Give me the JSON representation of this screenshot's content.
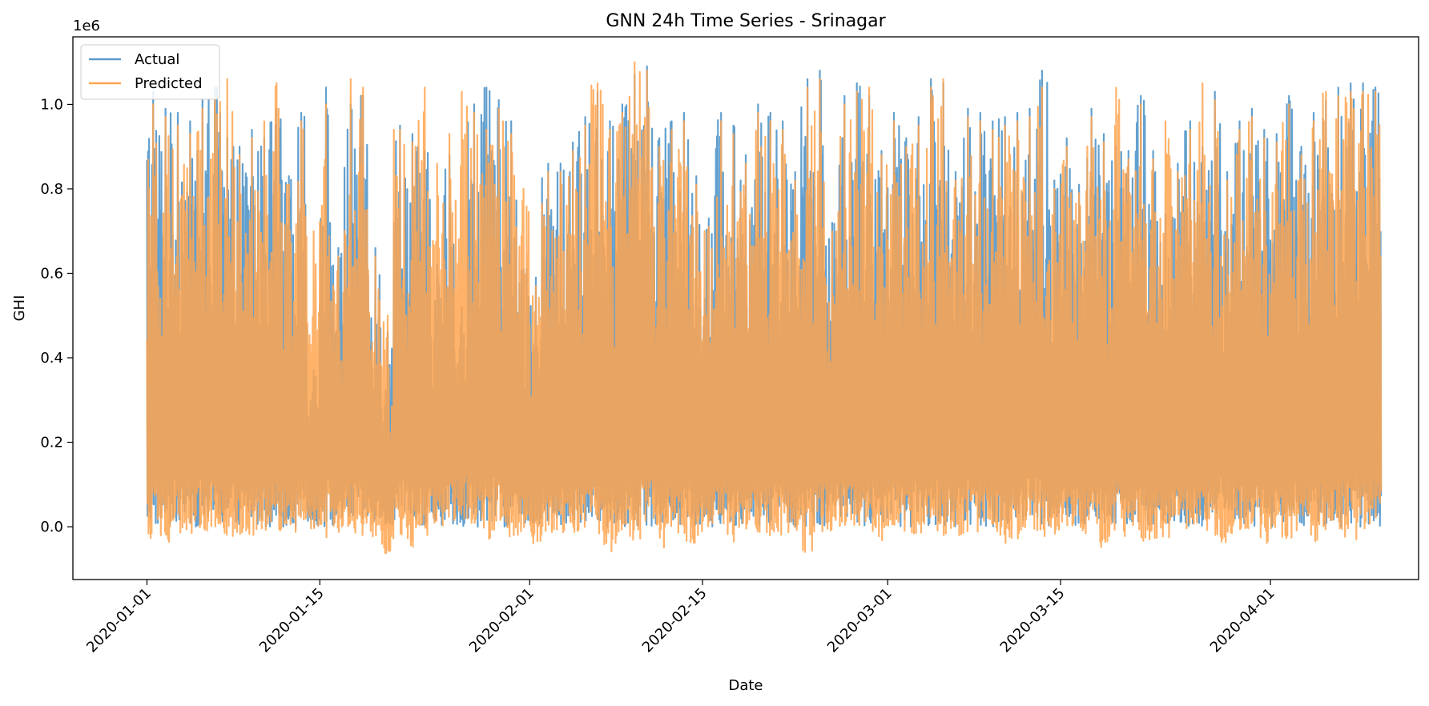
{
  "chart_data": {
    "type": "line",
    "title": "GNN 24h Time Series - Srinagar",
    "xlabel": "Date",
    "ylabel": "GHI",
    "y_offset_label": "1e6",
    "x_range": [
      "2019-12-26",
      "2020-04-13"
    ],
    "x_data_range": [
      "2020-01-01",
      "2020-04-09"
    ],
    "ylim": [
      -0.125,
      1.16
    ],
    "y_scale_factor": 1000000,
    "x_ticks": [
      "2020-01-01",
      "2020-01-15",
      "2020-02-01",
      "2020-02-15",
      "2020-03-01",
      "2020-03-15",
      "2020-04-01"
    ],
    "y_ticks": [
      "0.0",
      "0.2",
      "0.4",
      "0.6",
      "0.8",
      "1.0"
    ],
    "y_tick_values": [
      0.0,
      0.2,
      0.4,
      0.6,
      0.8,
      1.0
    ],
    "legend": {
      "position": "upper-left",
      "entries": [
        "Actual",
        "Predicted"
      ]
    },
    "grid": false,
    "series": [
      {
        "name": "Actual",
        "color": "#5b9bcb",
        "sampling": "hourly",
        "daily_peak_max": [
          1.03,
          0.99,
          0.98,
          0.96,
          1.01,
          1.04,
          0.92,
          0.9,
          0.94,
          0.92,
          0.99,
          0.83,
          0.98,
          0.37,
          1.04,
          0.66,
          1.0,
          1.02,
          0.66,
          0.46,
          0.95,
          0.93,
          0.89,
          0.62,
          0.88,
          0.52,
          1.0,
          1.04,
          1.01,
          0.96,
          0.61,
          0.59,
          0.86,
          0.86,
          0.91,
          0.97,
          1.03,
          0.96,
          1.0,
          1.07,
          1.09,
          0.92,
          0.96,
          0.98,
          0.83,
          0.73,
          0.98,
          0.95,
          0.88,
          1.0,
          0.98,
          0.96,
          0.84,
          1.06,
          1.08,
          0.72,
          1.02,
          1.05,
          1.02,
          0.89,
          0.98,
          0.92,
          0.97,
          1.06,
          1.05,
          0.84,
          0.99,
          0.98,
          0.96,
          0.97,
          0.98,
          0.99,
          1.08,
          0.82,
          0.92,
          0.81,
          0.99,
          0.93,
          0.9,
          0.89,
          1.02,
          0.89,
          0.74,
          0.86,
          0.96,
          0.9,
          1.03,
          0.84,
          0.96,
          0.99,
          0.94,
          0.93,
          1.02,
          0.9,
          0.98,
          1.01,
          1.04,
          1.05,
          1.05,
          1.04
        ],
        "daily_min": [
          0.0,
          0.0,
          0.0,
          0.0,
          0.0,
          0.0,
          0.0,
          0.0,
          0.0,
          0.0,
          0.0,
          0.0,
          0.0,
          0.0,
          0.0,
          0.0,
          0.0,
          0.0,
          0.0,
          0.0,
          0.0,
          0.0,
          0.0,
          0.0,
          0.0,
          0.0,
          0.0,
          0.0,
          0.0,
          0.0,
          0.0,
          0.0,
          0.0,
          0.0,
          0.0,
          0.0,
          0.0,
          0.0,
          0.0,
          0.0,
          0.0,
          0.0,
          0.0,
          0.0,
          0.0,
          0.0,
          0.0,
          0.0,
          0.0,
          0.0,
          0.0,
          0.0,
          0.0,
          0.0,
          0.0,
          0.03,
          0.0,
          0.0,
          0.0,
          0.0,
          0.02,
          0.0,
          0.0,
          0.0,
          0.0,
          0.0,
          0.0,
          0.0,
          0.0,
          0.0,
          0.0,
          0.02,
          0.0,
          0.0,
          0.0,
          0.0,
          0.0,
          0.0,
          0.0,
          0.0,
          0.0,
          0.0,
          0.0,
          0.0,
          0.0,
          0.0,
          0.0,
          0.03,
          0.0,
          0.0,
          0.0,
          0.0,
          0.0,
          0.0,
          0.0,
          0.0,
          0.0,
          0.0,
          0.0,
          0.0
        ]
      },
      {
        "name": "Predicted",
        "color": "#ffa54f",
        "sampling": "hourly",
        "daily_peak_max": [
          1.0,
          0.97,
          0.95,
          0.93,
          0.99,
          1.02,
          1.06,
          0.88,
          0.92,
          0.96,
          1.05,
          0.81,
          0.96,
          0.7,
          1.0,
          0.64,
          1.06,
          1.04,
          0.64,
          0.5,
          0.94,
          0.91,
          1.04,
          0.86,
          0.93,
          1.03,
          0.98,
          0.94,
          0.99,
          0.93,
          0.8,
          0.57,
          0.84,
          0.84,
          0.89,
          0.95,
          1.05,
          0.94,
          0.98,
          1.1,
          1.08,
          0.9,
          0.94,
          0.96,
          0.81,
          0.71,
          0.96,
          0.93,
          0.86,
          0.98,
          0.96,
          0.94,
          0.82,
          1.04,
          1.06,
          0.7,
          1.0,
          1.03,
          1.04,
          0.88,
          0.96,
          0.9,
          0.95,
          1.04,
          1.06,
          0.82,
          0.97,
          0.96,
          0.94,
          0.95,
          0.96,
          0.97,
          1.04,
          0.8,
          0.9,
          0.79,
          0.97,
          0.91,
          1.04,
          0.87,
          1.0,
          0.87,
          0.96,
          0.84,
          0.94,
          1.05,
          1.01,
          0.82,
          0.94,
          0.97,
          0.92,
          0.91,
          1.0,
          0.88,
          0.96,
          1.03,
          1.02,
          1.03,
          1.03,
          1.03
        ],
        "daily_min": [
          -0.03,
          -0.045,
          -0.015,
          -0.02,
          -0.02,
          -0.02,
          -0.03,
          -0.02,
          -0.02,
          -0.01,
          -0.01,
          0.0,
          -0.015,
          -0.01,
          -0.04,
          -0.03,
          -0.02,
          -0.035,
          -0.03,
          -0.07,
          -0.02,
          -0.05,
          -0.03,
          -0.01,
          -0.01,
          0.0,
          -0.02,
          -0.03,
          -0.02,
          -0.035,
          -0.02,
          -0.055,
          -0.03,
          -0.02,
          -0.02,
          -0.01,
          -0.02,
          -0.06,
          -0.05,
          -0.04,
          -0.01,
          -0.06,
          -0.02,
          -0.035,
          -0.04,
          -0.01,
          -0.01,
          -0.04,
          -0.01,
          -0.035,
          -0.02,
          -0.02,
          -0.01,
          -0.06,
          -0.02,
          -0.01,
          -0.015,
          -0.015,
          -0.03,
          -0.05,
          -0.015,
          -0.015,
          -0.02,
          -0.02,
          -0.02,
          -0.02,
          -0.015,
          -0.015,
          -0.02,
          -0.04,
          -0.03,
          -0.03,
          -0.025,
          -0.02,
          -0.015,
          -0.02,
          -0.02,
          -0.055,
          -0.02,
          -0.04,
          -0.035,
          -0.03,
          -0.03,
          0.0,
          -0.01,
          -0.01,
          -0.03,
          -0.04,
          -0.01,
          -0.01,
          -0.045,
          -0.035,
          -0.03,
          -0.01,
          -0.035,
          -0.02,
          -0.01,
          -0.03,
          -0.01,
          -0.01
        ]
      }
    ]
  }
}
